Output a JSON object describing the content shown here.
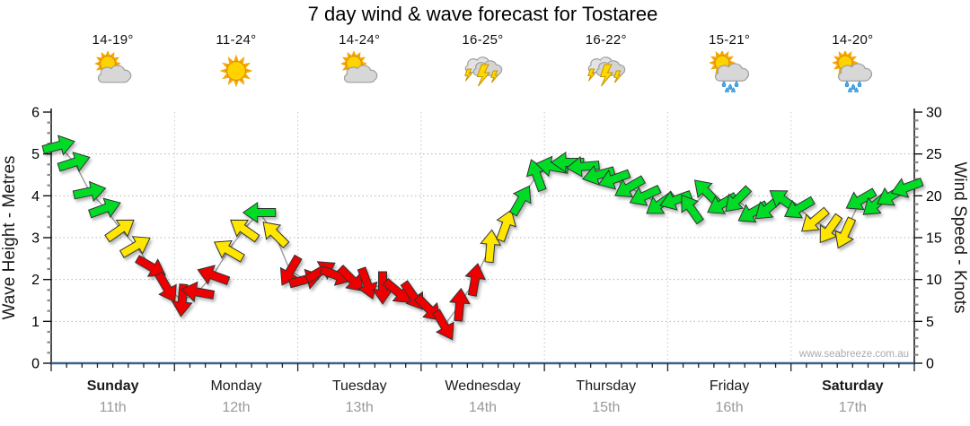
{
  "watermark": "www.seabreeze.com.au",
  "days": [
    {
      "name": "Sunday",
      "date": "11th",
      "temp_range": "14-19°",
      "icon": "partly-cloudy",
      "weekend": true
    },
    {
      "name": "Monday",
      "date": "12th",
      "temp_range": "11-24°",
      "icon": "sunny",
      "weekend": false
    },
    {
      "name": "Tuesday",
      "date": "13th",
      "temp_range": "14-24°",
      "icon": "partly-cloudy",
      "weekend": false
    },
    {
      "name": "Wednesday",
      "date": "14th",
      "temp_range": "16-25°",
      "icon": "thunderstorm",
      "weekend": false
    },
    {
      "name": "Thursday",
      "date": "15th",
      "temp_range": "16-22°",
      "icon": "thunderstorm",
      "weekend": false
    },
    {
      "name": "Friday",
      "date": "16th",
      "temp_range": "15-21°",
      "icon": "sun-showers",
      "weekend": false
    },
    {
      "name": "Saturday",
      "date": "17th",
      "temp_range": "14-20°",
      "icon": "sun-showers",
      "weekend": true
    }
  ],
  "chart_data": {
    "type": "wind-arrow-timeseries",
    "title": "7 day wind & wave forecast for Tostaree",
    "left_axis": {
      "label": "Wave Height - Metres",
      "min": 0,
      "max": 6,
      "major_tick": 1
    },
    "right_axis": {
      "label": "Wind Speed - Knots",
      "min": 0,
      "max": 30,
      "major_tick": 5
    },
    "points_per_day": 8,
    "point_fields": {
      "k": "wind speed, knots (right axis; wave metres = k/5)",
      "c": "arrow colour",
      "d": "arrow pointing direction, degrees CCW from east"
    },
    "colors": {
      "green": "#00DC28",
      "yellow": "#FFE600",
      "red": "#EE0000"
    },
    "points": [
      {
        "k": 26,
        "c": "green",
        "d": 15
      },
      {
        "k": 24,
        "c": "green",
        "d": 18
      },
      {
        "k": 20.5,
        "c": "green",
        "d": 12
      },
      {
        "k": 18.5,
        "c": "green",
        "d": 20
      },
      {
        "k": 16,
        "c": "yellow",
        "d": 35
      },
      {
        "k": 14,
        "c": "yellow",
        "d": 30
      },
      {
        "k": 11.5,
        "c": "red",
        "d": -30
      },
      {
        "k": 9,
        "c": "red",
        "d": -60
      },
      {
        "k": 7.5,
        "c": "red",
        "d": -95
      },
      {
        "k": 8.5,
        "c": "red",
        "d": 170
      },
      {
        "k": 10.5,
        "c": "red",
        "d": 160
      },
      {
        "k": 13.5,
        "c": "yellow",
        "d": 150
      },
      {
        "k": 16,
        "c": "yellow",
        "d": 145
      },
      {
        "k": 18,
        "c": "green",
        "d": 180
      },
      {
        "k": 15.5,
        "c": "yellow",
        "d": 135
      },
      {
        "k": 11,
        "c": "red",
        "d": -120
      },
      {
        "k": 10,
        "c": "red",
        "d": 15
      },
      {
        "k": 11,
        "c": "red",
        "d": 30
      },
      {
        "k": 10.5,
        "c": "red",
        "d": -20
      },
      {
        "k": 10,
        "c": "red",
        "d": -45
      },
      {
        "k": 9.5,
        "c": "red",
        "d": -70
      },
      {
        "k": 9,
        "c": "red",
        "d": -90
      },
      {
        "k": 8.5,
        "c": "red",
        "d": -40
      },
      {
        "k": 8,
        "c": "red",
        "d": -55
      },
      {
        "k": 6.5,
        "c": "red",
        "d": -45
      },
      {
        "k": 4.5,
        "c": "red",
        "d": -60
      },
      {
        "k": 7,
        "c": "red",
        "d": 85
      },
      {
        "k": 10,
        "c": "red",
        "d": 80
      },
      {
        "k": 14,
        "c": "yellow",
        "d": 85
      },
      {
        "k": 16.5,
        "c": "yellow",
        "d": 70
      },
      {
        "k": 19.5,
        "c": "green",
        "d": 60
      },
      {
        "k": 22.5,
        "c": "green",
        "d": 110
      },
      {
        "k": 23.5,
        "c": "green",
        "d": 170
      },
      {
        "k": 24,
        "c": "green",
        "d": 180
      },
      {
        "k": 23.5,
        "c": "green",
        "d": -175
      },
      {
        "k": 22.5,
        "c": "green",
        "d": -165
      },
      {
        "k": 22,
        "c": "green",
        "d": -160
      },
      {
        "k": 21,
        "c": "green",
        "d": -150
      },
      {
        "k": 20,
        "c": "green",
        "d": -155
      },
      {
        "k": 19,
        "c": "green",
        "d": -145
      },
      {
        "k": 19.5,
        "c": "green",
        "d": -160
      },
      {
        "k": 18.5,
        "c": "green",
        "d": 125
      },
      {
        "k": 20.5,
        "c": "green",
        "d": 135
      },
      {
        "k": 19,
        "c": "green",
        "d": -150
      },
      {
        "k": 19.5,
        "c": "green",
        "d": -135
      },
      {
        "k": 18,
        "c": "green",
        "d": -150
      },
      {
        "k": 18.5,
        "c": "green",
        "d": -140
      },
      {
        "k": 19.5,
        "c": "green",
        "d": 145
      },
      {
        "k": 18.5,
        "c": "green",
        "d": -150
      },
      {
        "k": 17,
        "c": "yellow",
        "d": -140
      },
      {
        "k": 16,
        "c": "yellow",
        "d": -125
      },
      {
        "k": 15.5,
        "c": "yellow",
        "d": -115
      },
      {
        "k": 19.5,
        "c": "green",
        "d": -150
      },
      {
        "k": 19,
        "c": "green",
        "d": -140
      },
      {
        "k": 20,
        "c": "green",
        "d": -150
      },
      {
        "k": 21,
        "c": "green",
        "d": -160
      }
    ]
  },
  "style_colors": {
    "axis": "#111111",
    "bottom_axis": "#3A648C",
    "grid": "#B5B5B5",
    "day_text": "#1A1A1A",
    "date_text": "#999999",
    "watermark_text": "#ABABAB",
    "connector": "#9C9C9C"
  }
}
